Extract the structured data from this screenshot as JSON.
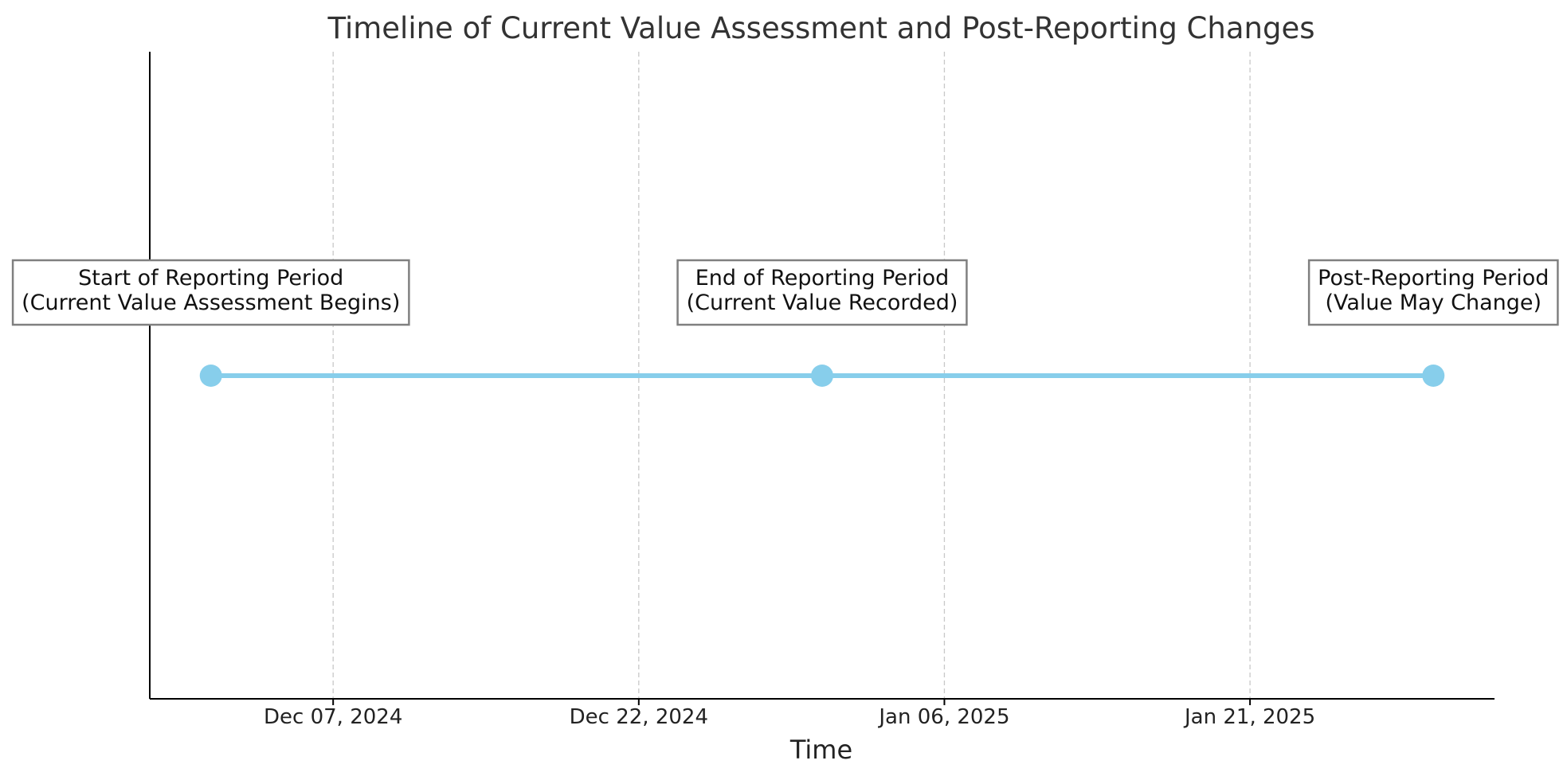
{
  "chart_data": {
    "type": "line",
    "title": "Timeline of Current Value Assessment and Post-Reporting Changes",
    "xlabel": "Time",
    "ylabel": "",
    "x_axis_type": "date",
    "xlim": [
      "2024-11-28",
      "2025-02-02"
    ],
    "x_ticks": [
      "2024-12-07",
      "2024-12-22",
      "2025-01-06",
      "2025-01-21"
    ],
    "x_tick_labels": [
      "Dec 07, 2024",
      "Dec 22, 2024",
      "Jan 06, 2025",
      "Jan 21, 2025"
    ],
    "grid": "vertical dashed",
    "series": [
      {
        "color": "#87ceeb",
        "points": [
          {
            "x": "2024-12-01",
            "lines": [
              "Start of Reporting Period",
              "(Current Value Assessment Begins)"
            ]
          },
          {
            "x": "2024-12-31",
            "lines": [
              "End of Reporting Period",
              "(Current Value Recorded)"
            ]
          },
          {
            "x": "2025-01-30",
            "lines": [
              "Post-Reporting Period",
              "(Value May Change)"
            ]
          }
        ]
      }
    ],
    "annotation_box_border": "#808080"
  }
}
